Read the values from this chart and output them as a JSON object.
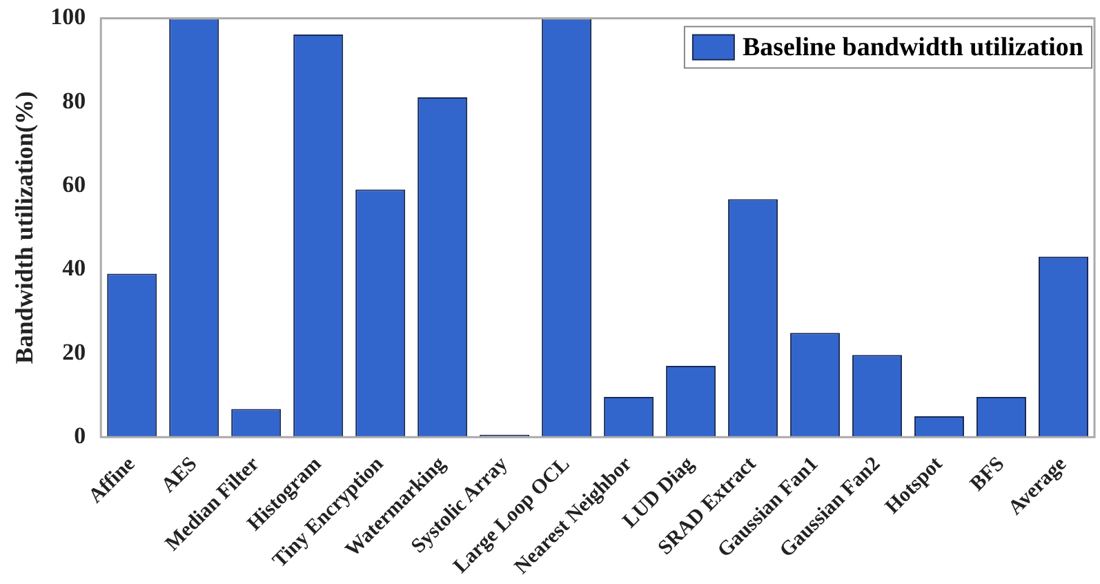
{
  "chart_data": {
    "type": "bar",
    "ylabel": "Bandwidth utilization(%)",
    "categories": [
      "Affine",
      "AES",
      "Median Filter",
      "Histogram",
      "Tiny Encryption",
      "Watermarking",
      "Systolic Array",
      "Large Loop OCL",
      "Nearest Neighbor",
      "LUD Diag",
      "SRAD Extract",
      "Gaussian Fan1",
      "Gaussian Fan2",
      "Hotspot",
      "BFS",
      "Average"
    ],
    "series": [
      {
        "name": "Baseline bandwidth utilization",
        "color": "#3366cc",
        "values": [
          39.0,
          100,
          6.7,
          96.1,
          59.1,
          81.1,
          0.6,
          100,
          9.6,
          17.0,
          56.8,
          24.9,
          19.6,
          5.0,
          9.6,
          43.1
        ]
      }
    ],
    "ylim": [
      0,
      100
    ],
    "yticks": [
      0,
      20,
      40,
      60,
      80,
      100
    ],
    "legend": "top right"
  }
}
